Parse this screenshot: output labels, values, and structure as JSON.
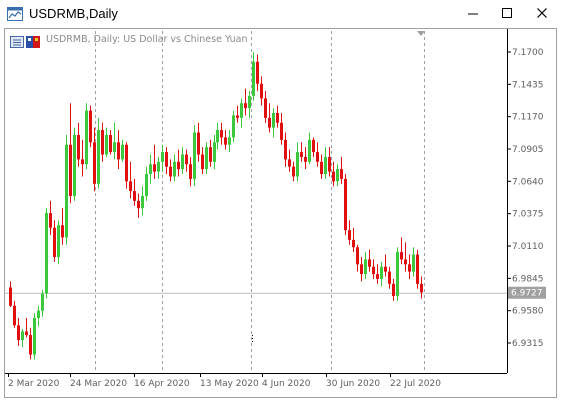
{
  "window": {
    "title": "USDRMB,Daily",
    "chart_caption": "USDRMB, Daily: US Dollar vs Chinese Yuan"
  },
  "colors": {
    "bull": "#3cc83c",
    "bear": "#e01010",
    "grid": "#a0a0a0",
    "price_line": "#c0c0c0",
    "price_label_bg": "#a0a0a0"
  },
  "chart_data": {
    "type": "candlestick",
    "y_ticks": [
      "7.1700",
      "7.1435",
      "7.1170",
      "7.0905",
      "7.0640",
      "7.0375",
      "7.0110",
      "6.9845",
      "6.9580",
      "6.9315"
    ],
    "x_ticks": [
      "2 Mar 2020",
      "24 Mar 2020",
      "16 Apr 2020",
      "13 May 2020",
      "4 Jun 2020",
      "30 Jun 2020",
      "22 Jul 2020"
    ],
    "ylim": [
      6.918,
      7.18
    ],
    "current_price": 6.9727,
    "current_price_label": "6.9727",
    "candles": [
      [
        6.977,
        6.982,
        6.961,
        6.962
      ],
      [
        6.962,
        6.966,
        6.944,
        6.946
      ],
      [
        6.946,
        6.952,
        6.929,
        6.934
      ],
      [
        6.934,
        6.943,
        6.928,
        6.941
      ],
      [
        6.941,
        6.952,
        6.936,
        6.938
      ],
      [
        6.938,
        6.944,
        6.918,
        6.922
      ],
      [
        6.922,
        6.956,
        6.918,
        6.952
      ],
      [
        6.952,
        6.962,
        6.945,
        6.958
      ],
      [
        6.958,
        6.975,
        6.953,
        6.972
      ],
      [
        6.972,
        7.042,
        6.968,
        7.038
      ],
      [
        7.038,
        7.048,
        7.02,
        7.026
      ],
      [
        7.026,
        7.032,
        6.998,
        7.002
      ],
      [
        7.002,
        7.032,
        6.996,
        7.028
      ],
      [
        7.028,
        7.042,
        7.012,
        7.018
      ],
      [
        7.018,
        7.102,
        7.012,
        7.094
      ],
      [
        7.094,
        7.128,
        7.046,
        7.052
      ],
      [
        7.052,
        7.108,
        7.048,
        7.102
      ],
      [
        7.102,
        7.112,
        7.076,
        7.082
      ],
      [
        7.082,
        7.098,
        7.068,
        7.078
      ],
      [
        7.078,
        7.128,
        7.074,
        7.122
      ],
      [
        7.122,
        7.126,
        7.092,
        7.096
      ],
      [
        7.096,
        7.108,
        7.056,
        7.062
      ],
      [
        7.062,
        7.116,
        7.058,
        7.106
      ],
      [
        7.106,
        7.112,
        7.08,
        7.086
      ],
      [
        7.086,
        7.108,
        7.084,
        7.102
      ],
      [
        7.102,
        7.106,
        7.086,
        7.088
      ],
      [
        7.088,
        7.112,
        7.082,
        7.096
      ],
      [
        7.096,
        7.106,
        7.074,
        7.082
      ],
      [
        7.082,
        7.098,
        7.08,
        7.094
      ],
      [
        7.094,
        7.096,
        7.058,
        7.064
      ],
      [
        7.064,
        7.08,
        7.05,
        7.056
      ],
      [
        7.056,
        7.066,
        7.044,
        7.048
      ],
      [
        7.048,
        7.054,
        7.034,
        7.042
      ],
      [
        7.042,
        7.06,
        7.036,
        7.052
      ],
      [
        7.052,
        7.076,
        7.048,
        7.07
      ],
      [
        7.07,
        7.086,
        7.062,
        7.078
      ],
      [
        7.078,
        7.094,
        7.066,
        7.072
      ],
      [
        7.072,
        7.084,
        7.066,
        7.08
      ],
      [
        7.08,
        7.094,
        7.072,
        7.088
      ],
      [
        7.088,
        7.092,
        7.07,
        7.076
      ],
      [
        7.076,
        7.082,
        7.064,
        7.068
      ],
      [
        7.068,
        7.086,
        7.064,
        7.08
      ],
      [
        7.08,
        7.09,
        7.068,
        7.074
      ],
      [
        7.074,
        7.092,
        7.07,
        7.086
      ],
      [
        7.086,
        7.09,
        7.072,
        7.078
      ],
      [
        7.078,
        7.084,
        7.06,
        7.066
      ],
      [
        7.066,
        7.11,
        7.06,
        7.104
      ],
      [
        7.104,
        7.112,
        7.08,
        7.086
      ],
      [
        7.086,
        7.092,
        7.07,
        7.074
      ],
      [
        7.074,
        7.096,
        7.07,
        7.092
      ],
      [
        7.092,
        7.098,
        7.076,
        7.08
      ],
      [
        7.08,
        7.102,
        7.074,
        7.096
      ],
      [
        7.096,
        7.112,
        7.09,
        7.106
      ],
      [
        7.106,
        7.112,
        7.094,
        7.1
      ],
      [
        7.1,
        7.106,
        7.09,
        7.094
      ],
      [
        7.094,
        7.106,
        7.088,
        7.1
      ],
      [
        7.1,
        7.122,
        7.096,
        7.118
      ],
      [
        7.118,
        7.126,
        7.112,
        7.116
      ],
      [
        7.116,
        7.132,
        7.108,
        7.128
      ],
      [
        7.128,
        7.14,
        7.118,
        7.124
      ],
      [
        7.124,
        7.138,
        7.116,
        7.134
      ],
      [
        7.134,
        7.17,
        7.13,
        7.162
      ],
      [
        7.162,
        7.168,
        7.138,
        7.144
      ],
      [
        7.144,
        7.15,
        7.126,
        7.132
      ],
      [
        7.132,
        7.138,
        7.112,
        7.116
      ],
      [
        7.116,
        7.128,
        7.104,
        7.108
      ],
      [
        7.108,
        7.124,
        7.1,
        7.12
      ],
      [
        7.12,
        7.126,
        7.108,
        7.112
      ],
      [
        7.112,
        7.12,
        7.094,
        7.098
      ],
      [
        7.098,
        7.104,
        7.076,
        7.082
      ],
      [
        7.082,
        7.09,
        7.072,
        7.076
      ],
      [
        7.076,
        7.08,
        7.064,
        7.068
      ],
      [
        7.068,
        7.096,
        7.064,
        7.088
      ],
      [
        7.088,
        7.096,
        7.08,
        7.084
      ],
      [
        7.084,
        7.092,
        7.074,
        7.08
      ],
      [
        7.08,
        7.104,
        7.078,
        7.098
      ],
      [
        7.098,
        7.1,
        7.084,
        7.088
      ],
      [
        7.088,
        7.096,
        7.076,
        7.08
      ],
      [
        7.08,
        7.086,
        7.066,
        7.07
      ],
      [
        7.07,
        7.092,
        7.066,
        7.084
      ],
      [
        7.084,
        7.092,
        7.068,
        7.072
      ],
      [
        7.072,
        7.08,
        7.06,
        7.064
      ],
      [
        7.064,
        7.078,
        7.06,
        7.074
      ],
      [
        7.074,
        7.084,
        7.062,
        7.066
      ],
      [
        7.066,
        7.07,
        7.02,
        7.024
      ],
      [
        7.024,
        7.032,
        7.012,
        7.016
      ],
      [
        7.016,
        7.026,
        7.006,
        7.01
      ],
      [
        7.01,
        7.012,
        6.99,
        6.996
      ],
      [
        6.996,
        7.002,
        6.982,
        6.988
      ],
      [
        6.988,
        7.006,
        6.984,
        7.0
      ],
      [
        7.0,
        7.008,
        6.99,
        6.994
      ],
      [
        6.994,
        7.0,
        6.984,
        6.988
      ],
      [
        6.988,
        6.996,
        6.98,
        6.984
      ],
      [
        6.984,
        6.998,
        6.978,
        6.994
      ],
      [
        6.994,
        7.004,
        6.986,
        6.99
      ],
      [
        6.99,
        6.994,
        6.976,
        6.98
      ],
      [
        6.98,
        6.984,
        6.966,
        6.97
      ],
      [
        6.97,
        7.01,
        6.966,
        7.006
      ],
      [
        7.006,
        7.018,
        6.996,
        7.0
      ],
      [
        7.0,
        7.014,
        6.99,
        6.996
      ],
      [
        6.996,
        7.004,
        6.984,
        6.99
      ],
      [
        6.99,
        7.01,
        6.986,
        7.004
      ],
      [
        7.004,
        7.008,
        6.976,
        6.98
      ],
      [
        6.98,
        6.986,
        6.968,
        6.973
      ]
    ]
  }
}
